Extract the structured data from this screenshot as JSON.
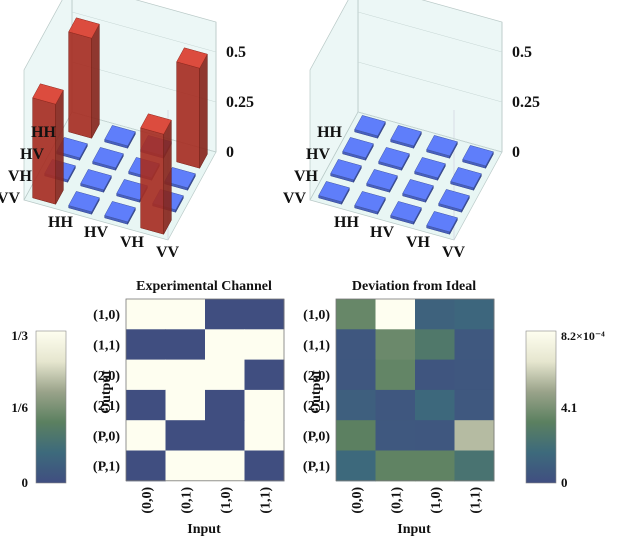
{
  "chart_data": [
    {
      "type": "bar3d",
      "row_labels": [
        "HH",
        "HV",
        "VH",
        "VV"
      ],
      "col_labels": [
        "HH",
        "HV",
        "VH",
        "VV"
      ],
      "z_ticks": [
        "0",
        "0.25",
        "0.5"
      ],
      "zlim": [
        0,
        0.5
      ],
      "values": [
        [
          0.5,
          0,
          0,
          0.5
        ],
        [
          0,
          0,
          0,
          0
        ],
        [
          0,
          0,
          0,
          0
        ],
        [
          0.5,
          0,
          0,
          0.5
        ]
      ],
      "colors": {
        "positive": "#d03a2c",
        "zero": "#5a78ee"
      }
    },
    {
      "type": "bar3d",
      "row_labels": [
        "HH",
        "HV",
        "VH",
        "VV"
      ],
      "col_labels": [
        "HH",
        "HV",
        "VH",
        "VV"
      ],
      "z_ticks": [
        "0",
        "0.25",
        "0.5"
      ],
      "zlim": [
        0,
        0.5
      ],
      "values": [
        [
          0,
          0,
          0,
          0
        ],
        [
          0,
          0,
          0,
          0
        ],
        [
          0,
          0,
          0,
          0
        ],
        [
          0,
          0,
          0,
          0
        ]
      ],
      "colors": {
        "zero": "#5a78ee"
      }
    },
    {
      "type": "heatmap",
      "title": "Experimental Channel",
      "xlabel": "Input",
      "ylabel": "Output",
      "x_ticks": [
        "(0,0)",
        "(0,1)",
        "(1,0)",
        "(1,1)"
      ],
      "y_ticks": [
        "(1,0)",
        "(1,1)",
        "(2,0)",
        "(2,1)",
        "(P,0)",
        "(P,1)"
      ],
      "values": [
        [
          0.3333,
          0.3333,
          0,
          0
        ],
        [
          0,
          0,
          0.3333,
          0.3333
        ],
        [
          0.3333,
          0.3333,
          0.3333,
          0
        ],
        [
          0,
          0.3333,
          0,
          0.3333
        ],
        [
          0.3333,
          0,
          0,
          0.3333
        ],
        [
          0,
          0.3333,
          0.3333,
          0
        ]
      ],
      "colorbar": {
        "ticks": [
          "0",
          "1/6",
          "1/3"
        ],
        "range": [
          0,
          0.3333
        ]
      }
    },
    {
      "type": "heatmap",
      "title": "Deviation from Ideal",
      "xlabel": "Input",
      "ylabel": "Output",
      "x_ticks": [
        "(0,0)",
        "(0,1)",
        "(1,0)",
        "(1,1)"
      ],
      "y_ticks": [
        "(1,0)",
        "(1,1)",
        "(2,0)",
        "(2,1)",
        "(P,0)",
        "(P,1)"
      ],
      "values_units": "1e-4",
      "values": [
        [
          3.6,
          8.2,
          1.2,
          1.4
        ],
        [
          0.5,
          3.7,
          2.7,
          0.6
        ],
        [
          0.5,
          3.5,
          0.4,
          0.5
        ],
        [
          1.0,
          0.5,
          1.5,
          0.6
        ],
        [
          3.3,
          0.6,
          0.5,
          5.5
        ],
        [
          1.6,
          3.4,
          3.4,
          2.3
        ]
      ],
      "colorbar": {
        "ticks": [
          "0",
          "4.1",
          "8.2×10⁻⁴"
        ],
        "range": [
          0,
          8.2
        ]
      }
    }
  ],
  "colors": {
    "cmap": [
      "#404e80",
      "#3d6a7c",
      "#5b8060",
      "#9aa38a",
      "#e6e6cf",
      "#fefef0"
    ]
  }
}
